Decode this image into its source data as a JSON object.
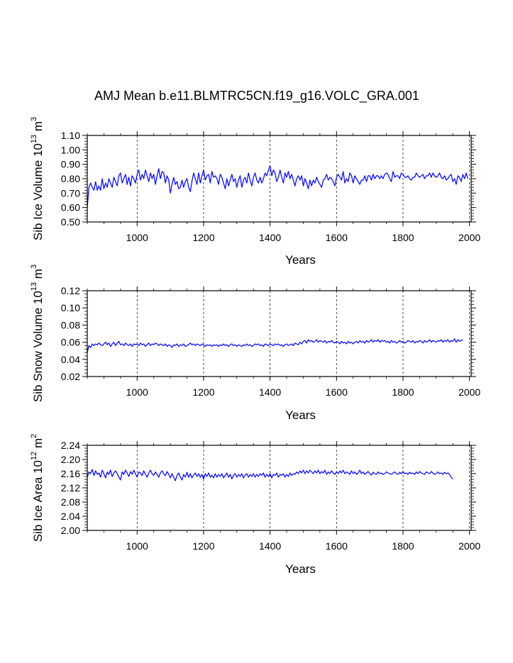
{
  "page": {
    "title": "AMJ Mean b.e11.BLMTRC5CN.f19_g16.VOLC_GRA.001"
  },
  "colors": {
    "series": "#0000ff",
    "axis": "#000000",
    "grid": "#000000"
  },
  "chart_data": [
    {
      "type": "line",
      "title": "AMJ Mean b.e11.BLMTRC5CN.f19_g16.VOLC_GRA.001",
      "xlabel": "Years",
      "ylabel": {
        "prefix": "Sib Ice Volume 10",
        "exp": "13",
        "unit": " m",
        "unit_exp": "3"
      },
      "xlim": [
        850,
        2005
      ],
      "ylim": [
        0.5,
        1.1
      ],
      "xticks": [
        1000,
        1200,
        1400,
        1600,
        1800,
        2000
      ],
      "yticks": [
        0.5,
        0.6,
        0.7,
        0.8,
        0.9,
        1.0,
        1.1
      ],
      "ytick_labels": [
        "0.50",
        "0.60",
        "0.70",
        "0.80",
        "0.90",
        "1.00",
        "1.10"
      ],
      "grid_x": [
        1000,
        1200,
        1400,
        1600,
        1800,
        2000
      ],
      "series": [
        {
          "name": "Sib Ice Volume",
          "step": 5,
          "x_start": 850,
          "values": [
            0.6,
            0.74,
            0.77,
            0.74,
            0.72,
            0.78,
            0.72,
            0.75,
            0.72,
            0.8,
            0.73,
            0.77,
            0.74,
            0.8,
            0.77,
            0.74,
            0.81,
            0.78,
            0.75,
            0.82,
            0.84,
            0.77,
            0.8,
            0.83,
            0.76,
            0.81,
            0.75,
            0.82,
            0.8,
            0.77,
            0.83,
            0.86,
            0.79,
            0.83,
            0.8,
            0.86,
            0.82,
            0.78,
            0.84,
            0.8,
            0.83,
            0.76,
            0.82,
            0.87,
            0.8,
            0.85,
            0.84,
            0.77,
            0.82,
            0.79,
            0.7,
            0.76,
            0.81,
            0.76,
            0.78,
            0.73,
            0.74,
            0.79,
            0.74,
            0.78,
            0.8,
            0.74,
            0.71,
            0.78,
            0.84,
            0.8,
            0.76,
            0.84,
            0.77,
            0.82,
            0.86,
            0.79,
            0.82,
            0.83,
            0.77,
            0.85,
            0.81,
            0.82,
            0.8,
            0.76,
            0.83,
            0.81,
            0.77,
            0.73,
            0.8,
            0.75,
            0.79,
            0.83,
            0.78,
            0.8,
            0.74,
            0.79,
            0.82,
            0.74,
            0.79,
            0.81,
            0.77,
            0.84,
            0.79,
            0.75,
            0.81,
            0.84,
            0.79,
            0.77,
            0.81,
            0.77,
            0.8,
            0.84,
            0.82,
            0.86,
            0.89,
            0.82,
            0.86,
            0.84,
            0.78,
            0.81,
            0.86,
            0.81,
            0.77,
            0.84,
            0.81,
            0.85,
            0.8,
            0.83,
            0.79,
            0.75,
            0.8,
            0.82,
            0.79,
            0.82,
            0.75,
            0.8,
            0.77,
            0.73,
            0.79,
            0.75,
            0.79,
            0.77,
            0.81,
            0.78,
            0.76,
            0.74,
            0.79,
            0.8,
            0.83,
            0.79,
            0.81,
            0.8,
            0.78,
            0.75,
            0.81,
            0.83,
            0.81,
            0.79,
            0.85,
            0.77,
            0.8,
            0.78,
            0.84,
            0.82,
            0.77,
            0.82,
            0.8,
            0.78,
            0.76,
            0.79,
            0.79,
            0.82,
            0.78,
            0.82,
            0.82,
            0.79,
            0.83,
            0.8,
            0.82,
            0.82,
            0.8,
            0.82,
            0.8,
            0.83,
            0.84,
            0.83,
            0.8,
            0.78,
            0.85,
            0.81,
            0.82,
            0.82,
            0.8,
            0.84,
            0.83,
            0.81,
            0.81,
            0.82,
            0.8,
            0.79,
            0.81,
            0.81,
            0.84,
            0.82,
            0.81,
            0.82,
            0.83,
            0.8,
            0.82,
            0.82,
            0.84,
            0.81,
            0.84,
            0.82,
            0.81,
            0.82,
            0.84,
            0.81,
            0.8,
            0.82,
            0.79,
            0.8,
            0.82,
            0.83,
            0.78,
            0.8,
            0.76,
            0.82,
            0.81,
            0.78,
            0.83,
            0.8,
            0.84,
            0.8
          ]
        }
      ]
    },
    {
      "type": "line",
      "xlabel": "Years",
      "ylabel": {
        "prefix": "Sib Snow Volume 10",
        "exp": "13",
        "unit": " m",
        "unit_exp": "3"
      },
      "xlim": [
        850,
        2005
      ],
      "ylim": [
        0.02,
        0.12
      ],
      "xticks": [
        1000,
        1200,
        1400,
        1600,
        1800,
        2000
      ],
      "yticks": [
        0.02,
        0.04,
        0.06,
        0.08,
        0.1,
        0.12
      ],
      "ytick_labels": [
        "0.02",
        "0.04",
        "0.06",
        "0.08",
        "0.10",
        "0.12"
      ],
      "grid_x": [
        1000,
        1200,
        1400,
        1600,
        1800,
        2000
      ],
      "series": [
        {
          "name": "Sib Snow Volume",
          "step": 5,
          "x_start": 850,
          "values": [
            0.048,
            0.056,
            0.054,
            0.058,
            0.056,
            0.058,
            0.057,
            0.059,
            0.057,
            0.056,
            0.058,
            0.06,
            0.057,
            0.059,
            0.055,
            0.058,
            0.06,
            0.056,
            0.059,
            0.061,
            0.057,
            0.058,
            0.056,
            0.059,
            0.057,
            0.056,
            0.058,
            0.055,
            0.058,
            0.057,
            0.058,
            0.056,
            0.059,
            0.057,
            0.058,
            0.055,
            0.057,
            0.059,
            0.056,
            0.058,
            0.057,
            0.059,
            0.058,
            0.056,
            0.058,
            0.057,
            0.056,
            0.058,
            0.055,
            0.057,
            0.056,
            0.054,
            0.057,
            0.056,
            0.058,
            0.055,
            0.057,
            0.056,
            0.058,
            0.055,
            0.056,
            0.057,
            0.059,
            0.057,
            0.058,
            0.056,
            0.058,
            0.057,
            0.056,
            0.058,
            0.057,
            0.055,
            0.057,
            0.056,
            0.057,
            0.055,
            0.057,
            0.056,
            0.057,
            0.055,
            0.057,
            0.056,
            0.058,
            0.056,
            0.057,
            0.055,
            0.057,
            0.058,
            0.056,
            0.057,
            0.055,
            0.057,
            0.056,
            0.055,
            0.057,
            0.056,
            0.058,
            0.056,
            0.057,
            0.055,
            0.056,
            0.058,
            0.057,
            0.058,
            0.056,
            0.057,
            0.055,
            0.058,
            0.057,
            0.056,
            0.058,
            0.057,
            0.056,
            0.058,
            0.057,
            0.058,
            0.056,
            0.057,
            0.055,
            0.057,
            0.058,
            0.056,
            0.057,
            0.058,
            0.056,
            0.059,
            0.058,
            0.057,
            0.06,
            0.058,
            0.061,
            0.062,
            0.059,
            0.063,
            0.061,
            0.062,
            0.06,
            0.061,
            0.063,
            0.06,
            0.062,
            0.061,
            0.06,
            0.062,
            0.059,
            0.061,
            0.06,
            0.062,
            0.06,
            0.059,
            0.061,
            0.06,
            0.058,
            0.061,
            0.059,
            0.06,
            0.058,
            0.061,
            0.059,
            0.06,
            0.058,
            0.06,
            0.061,
            0.059,
            0.062,
            0.06,
            0.061,
            0.059,
            0.062,
            0.06,
            0.061,
            0.063,
            0.06,
            0.062,
            0.061,
            0.063,
            0.06,
            0.062,
            0.061,
            0.062,
            0.06,
            0.061,
            0.059,
            0.062,
            0.06,
            0.061,
            0.059,
            0.06,
            0.062,
            0.06,
            0.061,
            0.059,
            0.06,
            0.062,
            0.061,
            0.06,
            0.062,
            0.059,
            0.061,
            0.06,
            0.062,
            0.061,
            0.059,
            0.062,
            0.06,
            0.061,
            0.063,
            0.06,
            0.062,
            0.061,
            0.06,
            0.062,
            0.061,
            0.063,
            0.06,
            0.062,
            0.061,
            0.063,
            0.06,
            0.062,
            0.061,
            0.064,
            0.06,
            0.063,
            0.061,
            0.062,
            0.063
          ]
        }
      ]
    },
    {
      "type": "line",
      "xlabel": "Years",
      "ylabel": {
        "prefix": "Sib Ice Area 10",
        "exp": "12",
        "unit": " m",
        "unit_exp": "2"
      },
      "xlim": [
        850,
        2005
      ],
      "ylim": [
        2.0,
        2.24
      ],
      "xticks": [
        1000,
        1200,
        1400,
        1600,
        1800,
        2000
      ],
      "yticks": [
        2.0,
        2.04,
        2.08,
        2.12,
        2.16,
        2.2,
        2.24
      ],
      "ytick_labels": [
        "2.00",
        "2.04",
        "2.08",
        "2.12",
        "2.16",
        "2.20",
        "2.24"
      ],
      "grid_x": [
        1000,
        1200,
        1400,
        1600,
        1800,
        2000
      ],
      "series": [
        {
          "name": "Sib Ice Area",
          "step": 5,
          "x_start": 850,
          "values": [
            2.15,
            2.165,
            2.16,
            2.172,
            2.155,
            2.168,
            2.158,
            2.162,
            2.15,
            2.17,
            2.16,
            2.148,
            2.165,
            2.158,
            2.17,
            2.152,
            2.162,
            2.168,
            2.16,
            2.15,
            2.142,
            2.165,
            2.158,
            2.17,
            2.162,
            2.152,
            2.166,
            2.158,
            2.17,
            2.16,
            2.15,
            2.165,
            2.162,
            2.155,
            2.168,
            2.158,
            2.15,
            2.162,
            2.17,
            2.16,
            2.155,
            2.165,
            2.158,
            2.15,
            2.162,
            2.168,
            2.16,
            2.154,
            2.166,
            2.158,
            2.148,
            2.16,
            2.15,
            2.14,
            2.155,
            2.162,
            2.15,
            2.142,
            2.158,
            2.15,
            2.164,
            2.15,
            2.16,
            2.148,
            2.156,
            2.162,
            2.152,
            2.16,
            2.15,
            2.158,
            2.145,
            2.16,
            2.152,
            2.162,
            2.15,
            2.156,
            2.148,
            2.16,
            2.15,
            2.158,
            2.152,
            2.16,
            2.148,
            2.155,
            2.162,
            2.15,
            2.158,
            2.145,
            2.156,
            2.16,
            2.15,
            2.158,
            2.152,
            2.16,
            2.148,
            2.156,
            2.16,
            2.15,
            2.158,
            2.152,
            2.16,
            2.15,
            2.158,
            2.152,
            2.16,
            2.155,
            2.162,
            2.15,
            2.158,
            2.152,
            2.16,
            2.148,
            2.158,
            2.155,
            2.162,
            2.15,
            2.158,
            2.155,
            2.16,
            2.15,
            2.158,
            2.152,
            2.162,
            2.155,
            2.16,
            2.158,
            2.165,
            2.16,
            2.168,
            2.162,
            2.17,
            2.16,
            2.168,
            2.162,
            2.17,
            2.165,
            2.16,
            2.168,
            2.162,
            2.17,
            2.16,
            2.166,
            2.162,
            2.17,
            2.158,
            2.165,
            2.16,
            2.168,
            2.162,
            2.158,
            2.165,
            2.16,
            2.168,
            2.162,
            2.17,
            2.16,
            2.165,
            2.162,
            2.158,
            2.168,
            2.16,
            2.165,
            2.158,
            2.162,
            2.17,
            2.16,
            2.165,
            2.158,
            2.162,
            2.166,
            2.16,
            2.156,
            2.164,
            2.16,
            2.158,
            2.165,
            2.16,
            2.162,
            2.158,
            2.16,
            2.165,
            2.162,
            2.16,
            2.158,
            2.162,
            2.165,
            2.16,
            2.158,
            2.164,
            2.16,
            2.166,
            2.16,
            2.162,
            2.158,
            2.164,
            2.16,
            2.162,
            2.158,
            2.165,
            2.16,
            2.166,
            2.162,
            2.16,
            2.158,
            2.165,
            2.162,
            2.16,
            2.166,
            2.162,
            2.158,
            2.16,
            2.165,
            2.16,
            2.162,
            2.158,
            2.164,
            2.16,
            2.162,
            2.158,
            2.15,
            2.145
          ]
        }
      ]
    }
  ]
}
